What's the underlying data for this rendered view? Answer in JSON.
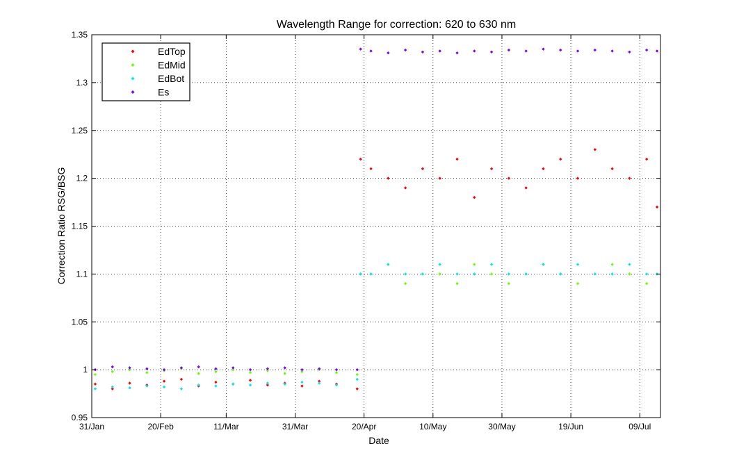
{
  "chart_data": {
    "type": "scatter",
    "title": "Wavelength Range for correction: 620 to 630 nm",
    "xlabel": "Date",
    "ylabel": "Correction Ratio RSG/BSG",
    "x_tick_labels": [
      "31/Jan",
      "20/Feb",
      "11/Mar",
      "31/Mar",
      "20/Apr",
      "10/May",
      "30/May",
      "19/Jun",
      "09/Jul"
    ],
    "x_tick_dates": [
      "2011-01-31",
      "2011-02-20",
      "2011-03-11",
      "2011-03-31",
      "2011-04-20",
      "2011-05-10",
      "2011-05-30",
      "2011-06-19",
      "2011-07-09"
    ],
    "xlim": [
      "2011-01-31",
      "2011-07-15"
    ],
    "ylim": [
      0.95,
      1.35
    ],
    "y_ticks": [
      0.95,
      1,
      1.05,
      1.1,
      1.15,
      1.2,
      1.25,
      1.3,
      1.35
    ],
    "y_tick_labels": [
      "0.95",
      "1",
      "1.05",
      "1.1",
      "1.15",
      "1.2",
      "1.25",
      "1.3",
      "1.35"
    ],
    "grid": true,
    "legend_position": "top-left",
    "x_dates": [
      "2011-02-01",
      "2011-02-06",
      "2011-02-11",
      "2011-02-16",
      "2011-02-21",
      "2011-02-26",
      "2011-03-03",
      "2011-03-08",
      "2011-03-13",
      "2011-03-18",
      "2011-03-23",
      "2011-03-28",
      "2011-04-02",
      "2011-04-07",
      "2011-04-12",
      "2011-04-18",
      "2011-04-19",
      "2011-04-22",
      "2011-04-27",
      "2011-05-02",
      "2011-05-07",
      "2011-05-12",
      "2011-05-17",
      "2011-05-22",
      "2011-05-27",
      "2011-06-01",
      "2011-06-06",
      "2011-06-11",
      "2011-06-16",
      "2011-06-21",
      "2011-06-26",
      "2011-07-01",
      "2011-07-06",
      "2011-07-11",
      "2011-07-14"
    ],
    "series": [
      {
        "name": "EdTop",
        "color": "#ff0000",
        "values": [
          0.985,
          0.98,
          0.986,
          0.984,
          0.988,
          0.99,
          0.983,
          0.987,
          0.985,
          0.989,
          0.984,
          0.986,
          0.983,
          0.988,
          0.985,
          0.98,
          1.22,
          1.21,
          1.2,
          1.19,
          1.21,
          1.2,
          1.22,
          1.18,
          1.21,
          1.2,
          1.19,
          1.21,
          1.22,
          1.2,
          1.23,
          1.21,
          1.2,
          1.22,
          1.17
        ]
      },
      {
        "name": "EdMid",
        "color": "#66ff00",
        "values": [
          0.995,
          0.998,
          1.0,
          0.997,
          0.999,
          1.001,
          0.996,
          0.998,
          1.0,
          0.997,
          0.999,
          0.996,
          0.998,
          1.0,
          0.997,
          0.995,
          1.1,
          1.1,
          1.11,
          1.09,
          1.1,
          1.1,
          1.09,
          1.11,
          1.1,
          1.09,
          1.1,
          1.11,
          1.1,
          1.09,
          1.1,
          1.11,
          1.1,
          1.09,
          1.1
        ]
      },
      {
        "name": "EdBot",
        "color": "#00e5ee",
        "values": [
          0.98,
          0.982,
          0.981,
          0.983,
          0.982,
          0.98,
          0.984,
          0.983,
          0.985,
          0.984,
          0.986,
          0.985,
          0.987,
          0.986,
          0.984,
          0.99,
          1.1,
          1.1,
          1.11,
          1.1,
          1.1,
          1.11,
          1.1,
          1.1,
          1.11,
          1.1,
          1.1,
          1.11,
          1.1,
          1.11,
          1.1,
          1.1,
          1.11,
          1.1,
          1.1
        ]
      },
      {
        "name": "Es",
        "color": "#7a00ff",
        "values": [
          1.0,
          1.003,
          1.002,
          1.001,
          1.0,
          1.002,
          1.003,
          1.001,
          1.002,
          1.0,
          1.001,
          1.002,
          1.0,
          1.001,
          1.0,
          1.0,
          1.335,
          1.333,
          1.331,
          1.334,
          1.332,
          1.333,
          1.331,
          1.333,
          1.332,
          1.334,
          1.333,
          1.335,
          1.334,
          1.333,
          1.334,
          1.333,
          1.332,
          1.334,
          1.333
        ]
      }
    ]
  }
}
